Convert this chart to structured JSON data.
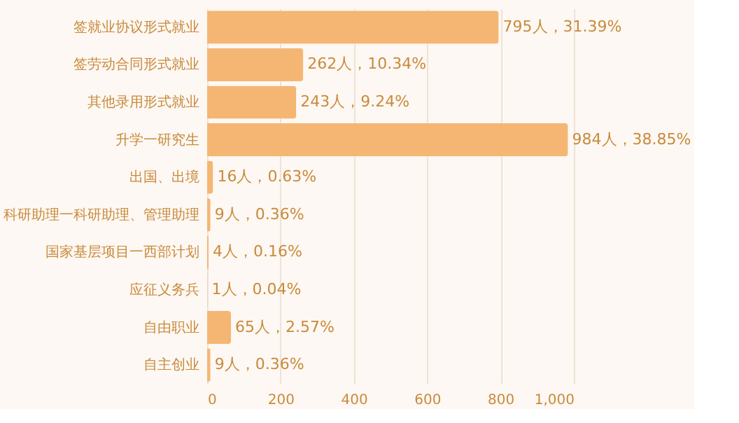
{
  "chart_data": {
    "type": "bar",
    "orientation": "horizontal",
    "categories": [
      "签就业协议形式就业",
      "签劳动合同形式就业",
      "其他录用形式就业",
      "升学一研究生",
      "出国、出境",
      "科研助理一科研助理、管理助理",
      "国家基层项目一西部计划",
      "应征义务兵",
      "自由职业",
      "自主创业"
    ],
    "values": [
      795,
      262,
      243,
      984,
      16,
      9,
      4,
      1,
      65,
      9
    ],
    "value_labels": [
      "795人，31.39%",
      "262人，10.34%",
      "243人，9.24%",
      "984人，38.85%",
      "16人，0.63%",
      "9人，0.36%",
      "4人，0.16%",
      "1人，0.04%",
      "65人，2.57%",
      "9人，0.36%"
    ],
    "color": "#f5b673",
    "xlim": [
      0,
      1000
    ],
    "xticks": [
      0,
      200,
      400,
      600,
      800,
      {
        "value": 1000,
        "label": "1,000"
      }
    ],
    "grid": "x"
  }
}
